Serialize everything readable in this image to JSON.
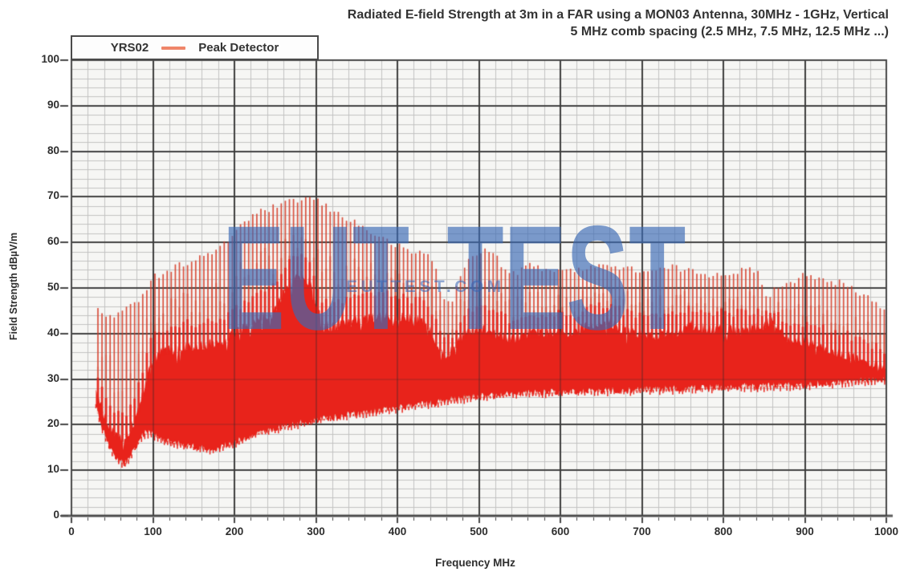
{
  "chart": {
    "title_line1": "Radiated E-field Strength at 3m in a FAR using a MON03 Antenna, 30MHz - 1GHz, Vertical",
    "title_line2": "5 MHz comb spacing (2.5 MHz, 7.5 MHz, 12.5 MHz ...)",
    "legend": {
      "series_name": "YRS02",
      "detector_label": "Peak Detector",
      "swatch_color": "#ef8569"
    },
    "watermark": {
      "large": "EUT TEST",
      "small": "EUTTEST.COM"
    }
  },
  "chart_data": {
    "type": "area",
    "subtype": "comb-spectrum-peak-trace",
    "title": "Radiated E-field Strength at 3m in a FAR using a MON03 Antenna, 30MHz - 1GHz, Vertical — 5 MHz comb spacing (2.5 MHz, 7.5 MHz, 12.5 MHz ...)",
    "xlabel": "Frequency MHz",
    "ylabel": "Field Strength dBµV/m",
    "xlim": [
      0,
      1000
    ],
    "ylim": [
      0,
      100
    ],
    "x_ticks": [
      0,
      100,
      200,
      300,
      400,
      500,
      600,
      700,
      800,
      900,
      1000
    ],
    "y_ticks": [
      0,
      10,
      20,
      30,
      40,
      50,
      60,
      70,
      80,
      90,
      100
    ],
    "x_minor_step_mhz": 20,
    "y_minor_step_db": 2,
    "grid": true,
    "legend_position": "top-left",
    "series_name": "YRS02 Peak Detector",
    "freq_range_mhz": [
      30,
      1000
    ],
    "comb_start_mhz": 32.5,
    "comb_spacing_mhz": 5,
    "envelopes": {
      "peak_dbuvm": [
        [
          30,
          46.5
        ],
        [
          34,
          44.8
        ],
        [
          40,
          44
        ],
        [
          50,
          44
        ],
        [
          60,
          44.5
        ],
        [
          70,
          45.5
        ],
        [
          80,
          47
        ],
        [
          90,
          49.5
        ],
        [
          100,
          52.5
        ],
        [
          110,
          53
        ],
        [
          125,
          54.5
        ],
        [
          140,
          55.5
        ],
        [
          155,
          56.5
        ],
        [
          170,
          57.5
        ],
        [
          185,
          59
        ],
        [
          195,
          61
        ],
        [
          205,
          63.5
        ],
        [
          215,
          65
        ],
        [
          230,
          66.5
        ],
        [
          245,
          67.5
        ],
        [
          260,
          68.3
        ],
        [
          275,
          69.2
        ],
        [
          290,
          69.8
        ],
        [
          300,
          69.3
        ],
        [
          315,
          67.5
        ],
        [
          330,
          66
        ],
        [
          345,
          64.8
        ],
        [
          360,
          63
        ],
        [
          375,
          61.5
        ],
        [
          390,
          60
        ],
        [
          400,
          59.3
        ],
        [
          410,
          58.3
        ],
        [
          420,
          57.7
        ],
        [
          430,
          58
        ],
        [
          440,
          57
        ],
        [
          448,
          54
        ],
        [
          455,
          47.5
        ],
        [
          462,
          46.5
        ],
        [
          468,
          47.5
        ],
        [
          476,
          52
        ],
        [
          485,
          55.5
        ],
        [
          495,
          57.5
        ],
        [
          505,
          58.5
        ],
        [
          515,
          57.8
        ],
        [
          525,
          56
        ],
        [
          535,
          53.2
        ],
        [
          545,
          53
        ],
        [
          555,
          54.8
        ],
        [
          570,
          54.8
        ],
        [
          585,
          54
        ],
        [
          600,
          54.2
        ],
        [
          615,
          53.4
        ],
        [
          635,
          55
        ],
        [
          650,
          55.2
        ],
        [
          665,
          54.6
        ],
        [
          680,
          54.2
        ],
        [
          695,
          54
        ],
        [
          710,
          53.6
        ],
        [
          725,
          54
        ],
        [
          740,
          54.6
        ],
        [
          755,
          53.8
        ],
        [
          770,
          53.4
        ],
        [
          785,
          53
        ],
        [
          800,
          53.2
        ],
        [
          815,
          53.6
        ],
        [
          830,
          54
        ],
        [
          843,
          53.2
        ],
        [
          852,
          49
        ],
        [
          858,
          47.8
        ],
        [
          865,
          50.5
        ],
        [
          875,
          51
        ],
        [
          885,
          51.5
        ],
        [
          895,
          52.8
        ],
        [
          905,
          53.3
        ],
        [
          915,
          52.2
        ],
        [
          925,
          51.2
        ],
        [
          935,
          51
        ],
        [
          945,
          51.2
        ],
        [
          955,
          50.2
        ],
        [
          965,
          48.8
        ],
        [
          975,
          48.2
        ],
        [
          985,
          47
        ],
        [
          1000,
          45.2
        ]
      ],
      "dense_top_dbuvm": [
        [
          30,
          27.5
        ],
        [
          38,
          23
        ],
        [
          46,
          20
        ],
        [
          55,
          18
        ],
        [
          63,
          17
        ],
        [
          70,
          18.5
        ],
        [
          78,
          21
        ],
        [
          85,
          25
        ],
        [
          92,
          30.5
        ],
        [
          100,
          34.5
        ],
        [
          110,
          36
        ],
        [
          125,
          36.5
        ],
        [
          140,
          37.5
        ],
        [
          155,
          37
        ],
        [
          170,
          38
        ],
        [
          185,
          38.5
        ],
        [
          200,
          40
        ],
        [
          215,
          42
        ],
        [
          230,
          43.5
        ],
        [
          243,
          44.5
        ],
        [
          252,
          46
        ],
        [
          262,
          50
        ],
        [
          272,
          52
        ],
        [
          282,
          53
        ],
        [
          292,
          51.5
        ],
        [
          300,
          46
        ],
        [
          308,
          42.5
        ],
        [
          318,
          41.5
        ],
        [
          332,
          42
        ],
        [
          345,
          42.8
        ],
        [
          360,
          43.2
        ],
        [
          375,
          43.8
        ],
        [
          390,
          44
        ],
        [
          405,
          43.6
        ],
        [
          420,
          43.2
        ],
        [
          435,
          42.5
        ],
        [
          448,
          38
        ],
        [
          458,
          35.5
        ],
        [
          468,
          36.5
        ],
        [
          480,
          39.5
        ],
        [
          495,
          41
        ],
        [
          510,
          40.5
        ],
        [
          525,
          39.5
        ],
        [
          540,
          39
        ],
        [
          555,
          39.5
        ],
        [
          570,
          40
        ],
        [
          585,
          40.2
        ],
        [
          600,
          40.6
        ],
        [
          615,
          40
        ],
        [
          630,
          41.5
        ],
        [
          645,
          42.5
        ],
        [
          658,
          42.8
        ],
        [
          670,
          41.5
        ],
        [
          685,
          40.5
        ],
        [
          700,
          40
        ],
        [
          715,
          39.6
        ],
        [
          730,
          39.8
        ],
        [
          745,
          40.5
        ],
        [
          760,
          42
        ],
        [
          775,
          41.2
        ],
        [
          790,
          41
        ],
        [
          805,
          41
        ],
        [
          820,
          40.6
        ],
        [
          835,
          41
        ],
        [
          850,
          42
        ],
        [
          862,
          43
        ],
        [
          872,
          40
        ],
        [
          882,
          38.6
        ],
        [
          895,
          38.2
        ],
        [
          905,
          38
        ],
        [
          920,
          37
        ],
        [
          935,
          36.2
        ],
        [
          950,
          35.4
        ],
        [
          962,
          34.8
        ],
        [
          975,
          34
        ],
        [
          988,
          33
        ],
        [
          1000,
          32.2
        ]
      ],
      "floor_dbuvm": [
        [
          30,
          24.5
        ],
        [
          36,
          20
        ],
        [
          43,
          16.5
        ],
        [
          50,
          14
        ],
        [
          57,
          12.2
        ],
        [
          65,
          11.4
        ],
        [
          72,
          12.8
        ],
        [
          80,
          15.5
        ],
        [
          88,
          18
        ],
        [
          95,
          18.2
        ],
        [
          105,
          17.4
        ],
        [
          115,
          16.6
        ],
        [
          130,
          15.8
        ],
        [
          145,
          15.3
        ],
        [
          160,
          14.9
        ],
        [
          172,
          14.6
        ],
        [
          185,
          15.2
        ],
        [
          200,
          16
        ],
        [
          215,
          17.2
        ],
        [
          230,
          18.2
        ],
        [
          245,
          18.9
        ],
        [
          260,
          19.5
        ],
        [
          280,
          20.3
        ],
        [
          300,
          21
        ],
        [
          325,
          21.8
        ],
        [
          350,
          22.4
        ],
        [
          375,
          23
        ],
        [
          400,
          23.6
        ],
        [
          430,
          24.4
        ],
        [
          460,
          25.2
        ],
        [
          490,
          26
        ],
        [
          520,
          26.4
        ],
        [
          550,
          26.8
        ],
        [
          580,
          27
        ],
        [
          610,
          27.2
        ],
        [
          640,
          27.4
        ],
        [
          670,
          27.5
        ],
        [
          700,
          27.6
        ],
        [
          730,
          27.8
        ],
        [
          760,
          27.9
        ],
        [
          790,
          28.1
        ],
        [
          820,
          28.3
        ],
        [
          850,
          28.4
        ],
        [
          880,
          28.6
        ],
        [
          910,
          28.8
        ],
        [
          940,
          29.1
        ],
        [
          970,
          29.5
        ],
        [
          1000,
          30
        ]
      ]
    },
    "colors": {
      "solid_mass": "#e8231b",
      "spike_light": "rgba(222,88,64,0.5)",
      "spike_main": "rgba(214,68,48,0.93)",
      "legend_swatch": "#ef8569",
      "grid_major": "#474747",
      "grid_minor": "#c2c2c2",
      "plot_bg": "#f6f6f4",
      "watermark_blue": "#3a69b4"
    }
  }
}
